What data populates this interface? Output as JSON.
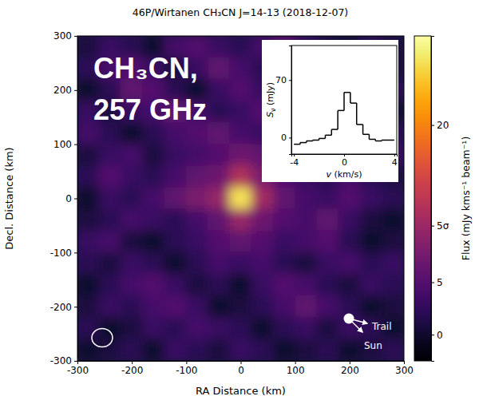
{
  "chart_data": [
    {
      "type": "heatmap",
      "title": "46P/Wirtanen CH₃CN J=14-13 (2018-12-07)",
      "annotations": [
        "CH₃CN,",
        "257 GHz"
      ],
      "labels": [
        "Trail",
        "Sun"
      ],
      "x_label": "RA Distance (km)",
      "y_label": "Decl. Distance (km)",
      "colorbar_label": "Flux (mJy kms⁻¹ beam⁻¹)",
      "x": [
        -280,
        -240,
        -200,
        -160,
        -120,
        -80,
        -40,
        0,
        40,
        80,
        120,
        160,
        200,
        240,
        280
      ],
      "y": [
        280,
        240,
        200,
        160,
        120,
        80,
        40,
        0,
        -40,
        -80,
        -120,
        -160,
        -200,
        -240,
        -280
      ],
      "z": [
        [
          1,
          3,
          2,
          0,
          4,
          5,
          3,
          2,
          4,
          6,
          3,
          1,
          0,
          2,
          1
        ],
        [
          2,
          4,
          5,
          3,
          1,
          3,
          6,
          4,
          2,
          4,
          5,
          3,
          2,
          0,
          1
        ],
        [
          0,
          2,
          6,
          5,
          2,
          0,
          3,
          5,
          3,
          1,
          4,
          6,
          3,
          1,
          2
        ],
        [
          3,
          1,
          3,
          4,
          6,
          4,
          2,
          3,
          5,
          6,
          2,
          4,
          5,
          3,
          0
        ],
        [
          4,
          2,
          0,
          2,
          4,
          5,
          6,
          4,
          3,
          5,
          4,
          2,
          3,
          5,
          2
        ],
        [
          1,
          3,
          4,
          1,
          3,
          4,
          5,
          7,
          6,
          4,
          3,
          1,
          2,
          4,
          3
        ],
        [
          2,
          5,
          3,
          2,
          4,
          6,
          7,
          12,
          8,
          5,
          3,
          2,
          4,
          2,
          1
        ],
        [
          0,
          3,
          2,
          4,
          6,
          8,
          10,
          26,
          11,
          6,
          4,
          3,
          5,
          3,
          2
        ],
        [
          1,
          2,
          4,
          3,
          2,
          4,
          6,
          10,
          7,
          5,
          4,
          6,
          3,
          1,
          0
        ],
        [
          3,
          4,
          1,
          0,
          2,
          3,
          5,
          6,
          5,
          3,
          4,
          5,
          2,
          0,
          1
        ],
        [
          2,
          1,
          3,
          2,
          0,
          2,
          4,
          3,
          4,
          2,
          1,
          3,
          4,
          2,
          3
        ],
        [
          0,
          2,
          4,
          5,
          3,
          1,
          2,
          0,
          3,
          5,
          4,
          2,
          1,
          3,
          2
        ],
        [
          1,
          3,
          2,
          4,
          5,
          3,
          0,
          1,
          2,
          4,
          6,
          4,
          2,
          0,
          1
        ],
        [
          2,
          0,
          1,
          3,
          2,
          4,
          3,
          2,
          0,
          2,
          3,
          1,
          3,
          2,
          0
        ],
        [
          0,
          1,
          2,
          0,
          3,
          2,
          1,
          3,
          2,
          0,
          1,
          2,
          0,
          1,
          2
        ]
      ],
      "xlim": [
        -300,
        300
      ],
      "ylim": [
        -300,
        300
      ],
      "xticks": [
        -300,
        -200,
        -100,
        0,
        100,
        200,
        300
      ],
      "yticks": [
        -300,
        -200,
        -100,
        0,
        100,
        200,
        300
      ],
      "zlim": [
        -2.5,
        28.5
      ],
      "zticks": [
        0,
        5,
        {
          "value": 10.4,
          "label": "5σ"
        },
        20
      ],
      "color": "inferno"
    },
    {
      "type": "histogram",
      "x_label": "v (km/s)",
      "y_label": "Sν (mJy)",
      "bins": [
        -4,
        -3.5,
        -3,
        -2.5,
        -2,
        -1.5,
        -1,
        -0.5,
        0,
        0.5,
        1,
        1.5,
        2,
        2.5,
        3,
        3.5,
        4
      ],
      "values": [
        -8,
        -6,
        -4,
        -3,
        -1,
        3,
        10,
        33,
        55,
        42,
        16,
        4,
        -2,
        -4,
        -3,
        -3
      ],
      "xlim": [
        -4.2,
        4.2
      ],
      "ylim": [
        -20,
        112
      ],
      "xticks": [
        -4,
        0,
        4
      ],
      "yticks": [
        0,
        70
      ],
      "color": "#000000",
      "line_style": "step"
    }
  ]
}
